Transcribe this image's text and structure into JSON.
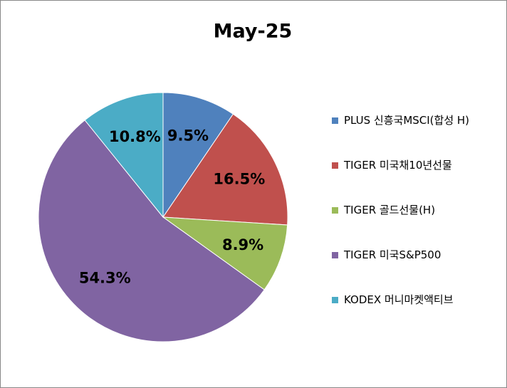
{
  "chart_data": {
    "type": "pie",
    "title": "May-25",
    "categories": [
      "PLUS 신흥국MSCI(합성 H)",
      "TIGER 미국채10년선물",
      "TIGER 골드선물(H)",
      "TIGER 미국S&P500",
      "KODEX 머니마켓액티브"
    ],
    "values": [
      9.5,
      16.5,
      8.9,
      54.3,
      10.8
    ],
    "value_labels": [
      "9.5%",
      "16.5%",
      "8.9%",
      "54.3%",
      "10.8%"
    ],
    "colors": [
      "#4f81bd",
      "#c0504d",
      "#9bbb59",
      "#8064a2",
      "#4bacc6"
    ],
    "legend": "right"
  }
}
